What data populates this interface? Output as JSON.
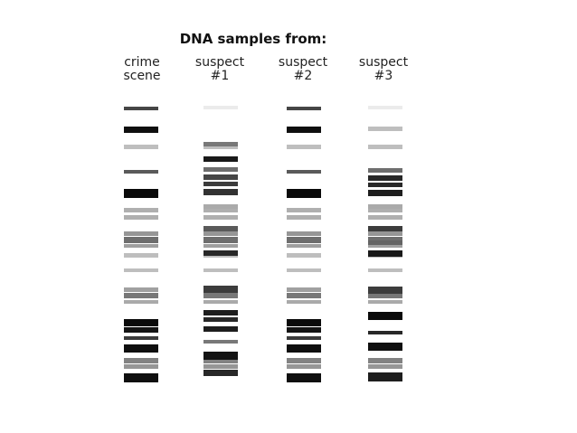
{
  "title": "DNA samples from:",
  "lanes": [
    {
      "line1": "crime",
      "line2": "scene"
    },
    {
      "line1": "suspect",
      "line2": "#1"
    },
    {
      "line1": "suspect",
      "line2": "#2"
    },
    {
      "line1": "suspect",
      "line2": "#3"
    }
  ]
}
